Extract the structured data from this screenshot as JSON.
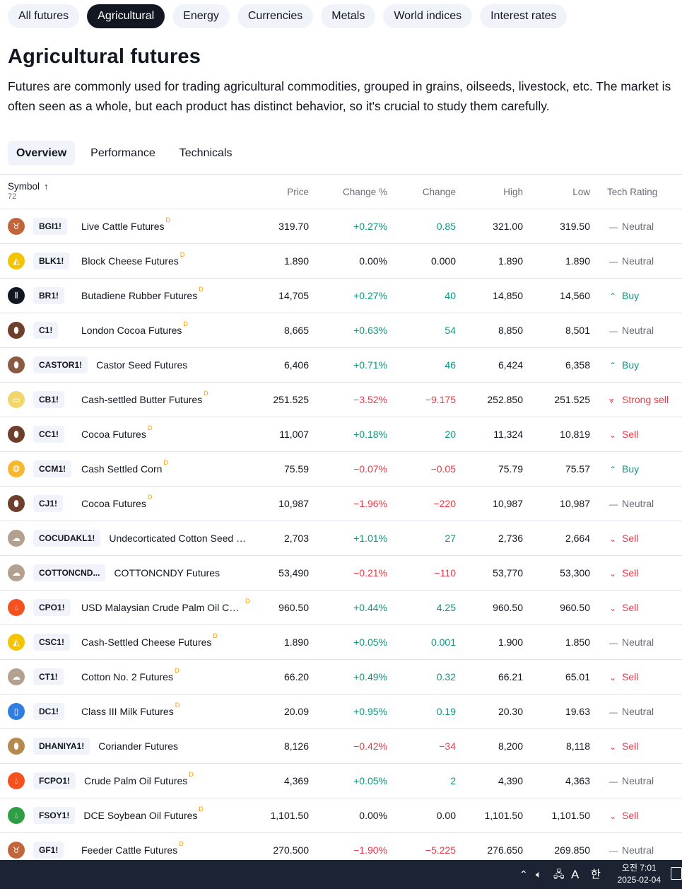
{
  "filter_tabs": [
    {
      "label": "All futures",
      "active": false
    },
    {
      "label": "Agricultural",
      "active": true
    },
    {
      "label": "Energy",
      "active": false
    },
    {
      "label": "Currencies",
      "active": false
    },
    {
      "label": "Metals",
      "active": false
    },
    {
      "label": "World indices",
      "active": false
    },
    {
      "label": "Interest rates",
      "active": false
    }
  ],
  "page": {
    "title": "Agricultural futures",
    "description": "Futures are commonly used for trading agricultural commodities, grouped in grains, oilseeds, livestock, etc. The market is often seen as a whole, but each product has distinct behavior, so it's crucial to study them carefully."
  },
  "view_tabs": [
    {
      "label": "Overview",
      "active": true
    },
    {
      "label": "Performance",
      "active": false
    },
    {
      "label": "Technicals",
      "active": false
    }
  ],
  "table": {
    "headers": {
      "symbol": "Symbol",
      "count": "72",
      "price": "Price",
      "change_pct": "Change %",
      "change": "Change",
      "high": "High",
      "low": "Low",
      "tech_rating": "Tech Rating"
    },
    "rows": [
      {
        "ticker": "BGI1!",
        "name": "Live Cattle Futures",
        "d": "D",
        "price": "319.70",
        "change_pct": "+0.27%",
        "change": "0.85",
        "high": "321.00",
        "low": "319.50",
        "rating": "Neutral",
        "dir": "pos",
        "rtype": "neutral",
        "logo_color": "#c0663a",
        "logo_icon": "cow-icon"
      },
      {
        "ticker": "BLK1!",
        "name": "Block Cheese Futures",
        "d": "D",
        "price": "1.890",
        "change_pct": "0.00%",
        "change": "0.000",
        "high": "1.890",
        "low": "1.890",
        "rating": "Neutral",
        "dir": "zero",
        "rtype": "neutral",
        "logo_color": "#f5c400",
        "logo_icon": "cheese-icon"
      },
      {
        "ticker": "BR1!",
        "name": "Butadiene Rubber Futures",
        "d": "D",
        "price": "14,705",
        "change_pct": "+0.27%",
        "change": "40",
        "high": "14,850",
        "low": "14,560",
        "rating": "Buy",
        "dir": "pos",
        "rtype": "buy",
        "logo_color": "#131722",
        "logo_icon": "rubber-icon"
      },
      {
        "ticker": "C1!",
        "name": "London Cocoa Futures",
        "d": "D",
        "price": "8,665",
        "change_pct": "+0.63%",
        "change": "54",
        "high": "8,850",
        "low": "8,501",
        "rating": "Neutral",
        "dir": "pos",
        "rtype": "neutral",
        "logo_color": "#6e3f2a",
        "logo_icon": "cocoa-icon"
      },
      {
        "ticker": "CASTOR1!",
        "name": "Castor Seed Futures",
        "d": "",
        "price": "6,406",
        "change_pct": "+0.71%",
        "change": "46",
        "high": "6,424",
        "low": "6,358",
        "rating": "Buy",
        "dir": "pos",
        "rtype": "buy",
        "logo_color": "#8a5a44",
        "logo_icon": "seed-icon"
      },
      {
        "ticker": "CB1!",
        "name": "Cash-settled Butter Futures",
        "d": "D",
        "price": "251.525",
        "change_pct": "−3.52%",
        "change": "−9.175",
        "high": "252.850",
        "low": "251.525",
        "rating": "Strong sell",
        "dir": "neg",
        "rtype": "strong-sell",
        "logo_color": "#f2d56b",
        "logo_icon": "butter-icon"
      },
      {
        "ticker": "CC1!",
        "name": "Cocoa Futures",
        "d": "D",
        "price": "11,007",
        "change_pct": "+0.18%",
        "change": "20",
        "high": "11,324",
        "low": "10,819",
        "rating": "Sell",
        "dir": "pos",
        "rtype": "sell",
        "logo_color": "#6e3f2a",
        "logo_icon": "cocoa-icon"
      },
      {
        "ticker": "CCM1!",
        "name": "Cash Settled Corn",
        "d": "D",
        "price": "75.59",
        "change_pct": "−0.07%",
        "change": "−0.05",
        "high": "75.79",
        "low": "75.57",
        "rating": "Buy",
        "dir": "neg",
        "rtype": "buy",
        "logo_color": "#f5b82e",
        "logo_icon": "corn-icon"
      },
      {
        "ticker": "CJ1!",
        "name": "Cocoa Futures",
        "d": "D",
        "price": "10,987",
        "change_pct": "−1.96%",
        "change": "−220",
        "high": "10,987",
        "low": "10,987",
        "rating": "Neutral",
        "dir": "neg",
        "rtype": "neutral",
        "logo_color": "#6e3f2a",
        "logo_icon": "cocoa-icon"
      },
      {
        "ticker": "COCUDAKL1!",
        "name": "Undecorticated Cotton Seed …",
        "d": "",
        "price": "2,703",
        "change_pct": "+1.01%",
        "change": "27",
        "high": "2,736",
        "low": "2,664",
        "rating": "Sell",
        "dir": "pos",
        "rtype": "sell",
        "logo_color": "#b3a08e",
        "logo_icon": "cotton-icon"
      },
      {
        "ticker": "COTTONCND...",
        "name": "COTTONCNDY Futures",
        "d": "",
        "price": "53,490",
        "change_pct": "−0.21%",
        "change": "−110",
        "high": "53,770",
        "low": "53,300",
        "rating": "Sell",
        "dir": "neg",
        "rtype": "sell",
        "logo_color": "#b3a08e",
        "logo_icon": "cotton-icon"
      },
      {
        "ticker": "CPO1!",
        "name": "USD Malaysian Crude Palm Oil Ca…",
        "d": "D",
        "price": "960.50",
        "change_pct": "+0.44%",
        "change": "4.25",
        "high": "960.50",
        "low": "960.50",
        "rating": "Sell",
        "dir": "pos",
        "rtype": "sell",
        "logo_color": "#f4511e",
        "logo_icon": "oil-drop-icon"
      },
      {
        "ticker": "CSC1!",
        "name": "Cash-Settled Cheese Futures",
        "d": "D",
        "price": "1.890",
        "change_pct": "+0.05%",
        "change": "0.001",
        "high": "1.900",
        "low": "1.850",
        "rating": "Neutral",
        "dir": "pos",
        "rtype": "neutral",
        "logo_color": "#f5c400",
        "logo_icon": "cheese-icon"
      },
      {
        "ticker": "CT1!",
        "name": "Cotton No. 2 Futures",
        "d": "D",
        "price": "66.20",
        "change_pct": "+0.49%",
        "change": "0.32",
        "high": "66.21",
        "low": "65.01",
        "rating": "Sell",
        "dir": "pos",
        "rtype": "sell",
        "logo_color": "#b3a08e",
        "logo_icon": "cotton-icon"
      },
      {
        "ticker": "DC1!",
        "name": "Class III Milk Futures",
        "d": "D",
        "price": "20.09",
        "change_pct": "+0.95%",
        "change": "0.19",
        "high": "20.30",
        "low": "19.63",
        "rating": "Neutral",
        "dir": "pos",
        "rtype": "neutral",
        "logo_color": "#2f7de1",
        "logo_icon": "milk-icon"
      },
      {
        "ticker": "DHANIYA1!",
        "name": "Coriander Futures",
        "d": "",
        "price": "8,126",
        "change_pct": "−0.42%",
        "change": "−34",
        "high": "8,200",
        "low": "8,118",
        "rating": "Sell",
        "dir": "neg",
        "rtype": "sell",
        "logo_color": "#b58a4c",
        "logo_icon": "seed-icon"
      },
      {
        "ticker": "FCPO1!",
        "name": "Crude Palm Oil Futures",
        "d": "D",
        "price": "4,369",
        "change_pct": "+0.05%",
        "change": "2",
        "high": "4,390",
        "low": "4,363",
        "rating": "Neutral",
        "dir": "pos",
        "rtype": "neutral",
        "logo_color": "#f4511e",
        "logo_icon": "oil-drop-icon"
      },
      {
        "ticker": "FSOY1!",
        "name": "DCE Soybean Oil Futures",
        "d": "D",
        "price": "1,101.50",
        "change_pct": "0.00%",
        "change": "0.00",
        "high": "1,101.50",
        "low": "1,101.50",
        "rating": "Sell",
        "dir": "zero",
        "rtype": "sell",
        "logo_color": "#2e9e44",
        "logo_icon": "oil-drop-icon"
      },
      {
        "ticker": "GF1!",
        "name": "Feeder Cattle Futures",
        "d": "D",
        "price": "270.500",
        "change_pct": "−1.90%",
        "change": "−5.225",
        "high": "276.650",
        "low": "269.850",
        "rating": "Neutral",
        "dir": "neg",
        "rtype": "neutral",
        "logo_color": "#c0663a",
        "logo_icon": "cow-icon"
      }
    ]
  },
  "colors": {
    "positive": "#089981",
    "negative": "#f23645",
    "neutral": "#6a6d78",
    "accent_dark": "#131722"
  },
  "taskbar": {
    "ime_mode": "A",
    "ime_lang": "한",
    "time": "오전 7:01",
    "date": "2025-02-04"
  }
}
